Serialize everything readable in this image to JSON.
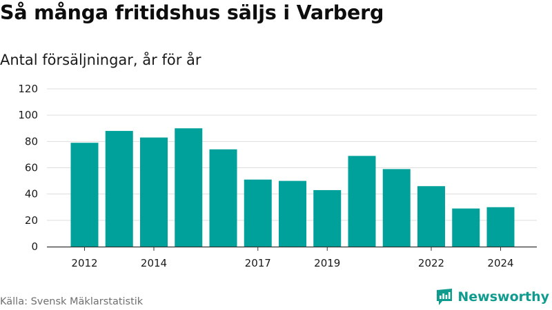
{
  "title": "Så många fritidshus säljs i Varberg",
  "subtitle": "Antal försäljningar, år för år",
  "source": "Källa: Svensk Mäklarstatistik",
  "brand": {
    "name": "Newsworthy",
    "icon": "newsworthy-logo-icon",
    "color": "#0f9b8e"
  },
  "colors": {
    "bar": "#00a19a",
    "grid": "#dddddd",
    "axis": "#333333"
  },
  "chart_data": {
    "type": "bar",
    "title": "Så många fritidshus säljs i Varberg",
    "subtitle": "Antal försäljningar, år för år",
    "categories": [
      "2012",
      "2013",
      "2014",
      "2015",
      "2016",
      "2017",
      "2018",
      "2019",
      "2020",
      "2021",
      "2022",
      "2023",
      "2024"
    ],
    "values": [
      79,
      88,
      83,
      90,
      74,
      51,
      50,
      43,
      69,
      59,
      46,
      29,
      30
    ],
    "x_tick_labels": [
      "2012",
      "2014",
      "2017",
      "2019",
      "2022",
      "2024"
    ],
    "y_ticks": [
      0,
      20,
      40,
      60,
      80,
      100,
      120
    ],
    "ylim": [
      0,
      120
    ],
    "xlabel": "",
    "ylabel": "",
    "grid": true,
    "legend": "none"
  }
}
